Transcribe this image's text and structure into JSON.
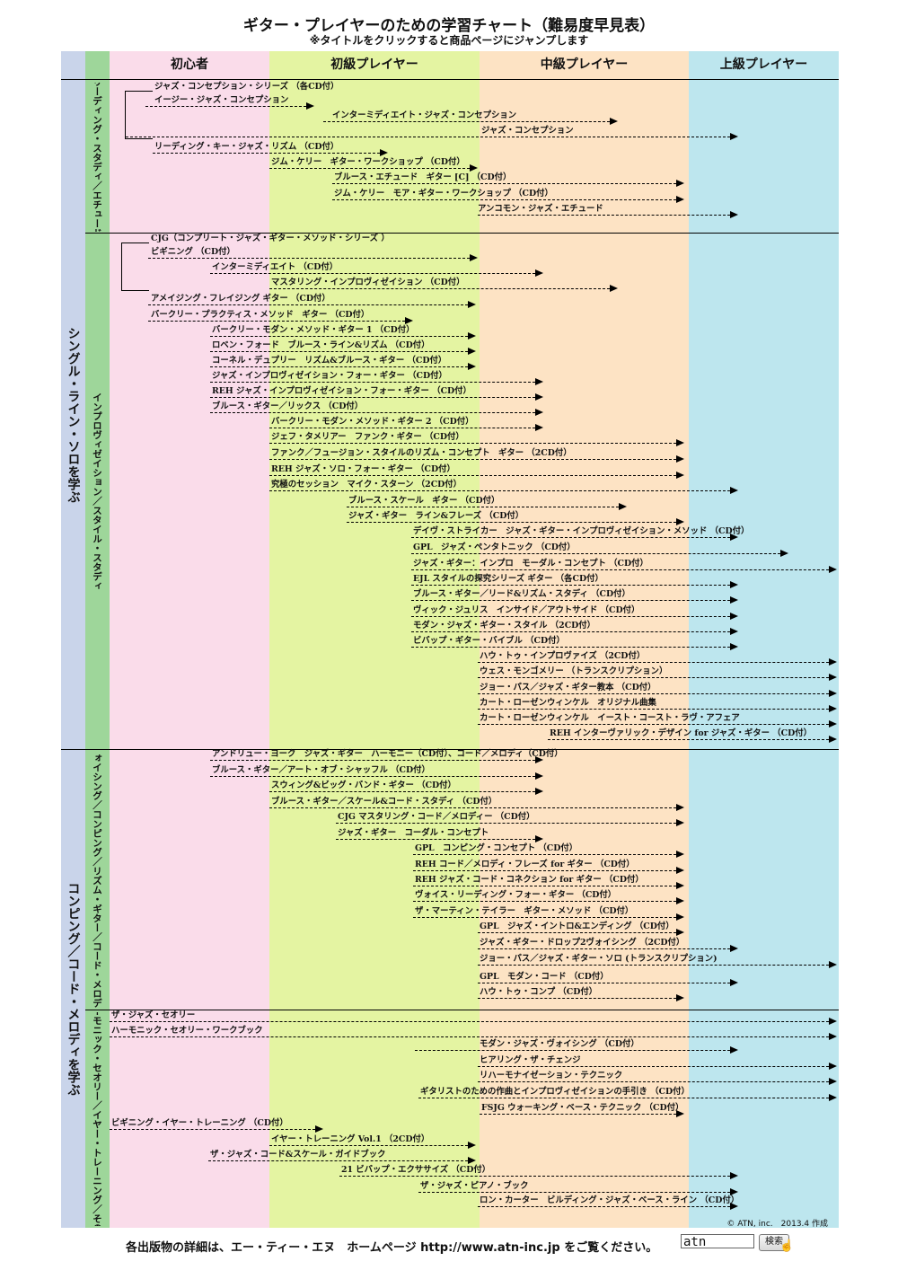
{
  "header": {
    "title": "ギター・プレイヤーのための学習チャート（難易度早見表）",
    "subtitle": "※タイトルをクリックすると商品ページにジャンプします"
  },
  "levels": [
    "初心者",
    "初級プレイヤー",
    "中級プレイヤー",
    "上級プレイヤー"
  ],
  "colors": {
    "major_col": "#c9d4ea",
    "minor_col": "#9ed69a",
    "beginner": "#fadcea",
    "elementary": "#e4f4a2",
    "intermediate": "#fde3c4",
    "advanced": "#bde6ee"
  },
  "major_sections": [
    "シングル・ライン・ソロを学ぶ",
    "コンピング／コード・メロディを学ぶ"
  ],
  "minor_sections": [
    "リーディング・スタディ／エチュード",
    "インプロヴィゼイション／スタイル・スタディ",
    "ヴォイシング／コンピング／リズム・ギター／コード・メロディ",
    "ハーモニック・セオリー／イヤー・トレーニング／その他"
  ],
  "items": [
    {
      "title": "ジャズ・コンセプション・シリーズ （各CD付）"
    },
    {
      "title": "イージー・ジャズ・コンセプション"
    },
    {
      "title": "インターミディエイト・ジャズ・コンセプション"
    },
    {
      "title": "ジャズ・コンセプション"
    },
    {
      "title": "リーディング・キー・ジャズ・リズム （CD付）"
    },
    {
      "title": "ジム・ケリー　ギター・ワークショップ （CD付）"
    },
    {
      "title": "ブルース・エチュード　ギター [C] （CD付）"
    },
    {
      "title": "ジム・ケリー　モア・ギター・ワークショップ （CD付）"
    },
    {
      "title": "アンコモン・ジャズ・エチュード"
    },
    {
      "title": "CJG（コンプリート・ジャズ・ギター・メソッド・シリーズ ）"
    },
    {
      "title": "ビギニング （CD付）"
    },
    {
      "title": "インターミディエイト （CD付）"
    },
    {
      "title": "マスタリング・インプロヴィゼイション （CD付）"
    },
    {
      "title": "アメイジング・フレイジング ギター （CD付）"
    },
    {
      "title": "バークリー・プラクティス・メソッド　ギター （CD付）"
    },
    {
      "title": "バークリー・モダン・メソッド・ギター 1 （CD付）"
    },
    {
      "title": "ロベン・フォード　ブルース・ライン&リズム （CD付）"
    },
    {
      "title": "コーネル・デュプリー　リズム&ブルース・ギター （CD付）"
    },
    {
      "title": "ジャズ・インプロヴィゼイション・フォー・ギター （CD付）"
    },
    {
      "title": "REH ジャズ・インプロヴィゼイション・フォー・ギター （CD付）"
    },
    {
      "title": "ブルース・ギター／リックス （CD付）"
    },
    {
      "title": "バークリー・モダン・メソッド・ギター 2 （CD付）"
    },
    {
      "title": "ジェフ・タメリアー　ファンク・ギター （CD付）"
    },
    {
      "title": "ファンク／フュージョン・スタイルのリズム・コンセプト　ギター （2CD付）"
    },
    {
      "title": "REH ジャズ・ソロ・フォー・ギター （CD付）"
    },
    {
      "title": "究極のセッション　マイク・スターン （2CD付）"
    },
    {
      "title": "ブルース・スケール　ギター （CD付）"
    },
    {
      "title": "ジャズ・ギター　ライン&フレーズ （CD付）"
    },
    {
      "title": "デイヴ・ストライカー　ジャズ・ギター・インプロヴィゼイション・メソッド （CD付）"
    },
    {
      "title": "GPL　ジャズ・ペンタトニック （CD付）"
    },
    {
      "title": "ジャズ・ギター：インプロ　モーダル・コンセプト （CD付）"
    },
    {
      "title": "EJL スタイルの探究シリーズ ギター （各CD付）"
    },
    {
      "title": "ブルース・ギター／リード&リズム・スタディ （CD付）"
    },
    {
      "title": "ヴィック・ジュリス　インサイド／アウトサイド （CD付）"
    },
    {
      "title": "モダン・ジャズ・ギター・スタイル （2CD付）"
    },
    {
      "title": "ビバップ・ギター・バイブル （CD付）"
    },
    {
      "title": "ハウ・トゥ・インプロヴァイズ （2CD付）"
    },
    {
      "title": "ウェス・モンゴメリー （トランスクリプション）"
    },
    {
      "title": "ジョー・パス／ジャズ・ギター教本 （CD付）"
    },
    {
      "title": "カート・ローゼンウィンケル　オリジナル曲集"
    },
    {
      "title": "カート・ローゼンウィンケル　イースト・コースト・ラヴ・アフェア"
    },
    {
      "title": "REH インターヴァリック・デザイン for ジャズ・ギター （CD付）"
    },
    {
      "title": "アンドリュー・ヨーク　ジャズ・ギター　ハーモニー（CD付）、コード／メロディ（CD付）"
    },
    {
      "title": "ブルース・ギター／アート・オブ・シャッフル （CD付）"
    },
    {
      "title": "スウィング&ビッグ・バンド・ギター （CD付）"
    },
    {
      "title": "ブルース・ギター／スケール&コード・スタディ （CD付）"
    },
    {
      "title": "CJG マスタリング・コード／メロディー （CD付）"
    },
    {
      "title": "ジャズ・ギター　コーダル・コンセプト"
    },
    {
      "title": "GPL　コンピング・コンセプト （CD付）"
    },
    {
      "title": "REH コード／メロディ・フレーズ for ギター （CD付）"
    },
    {
      "title": "REH ジャズ・コード・コネクション for ギター （CD付）"
    },
    {
      "title": "ヴォイス・リーディング・フォー・ギター （CD付）"
    },
    {
      "title": "ザ・マーティン・テイラー　ギター・メソッド （CD付）"
    },
    {
      "title": "GPL　ジャズ・イントロ&エンディング （CD付）"
    },
    {
      "title": "ジャズ・ギター・ドロップ2ヴォイシング （2CD付）"
    },
    {
      "title": "ジョー・パス／ジャズ・ギター・ソロ (トランスクリプション)"
    },
    {
      "title": "GPL　モダン・コード （CD付）"
    },
    {
      "title": "ハウ・トゥ・コンプ （CD付）"
    },
    {
      "title": "ザ・ジャズ・セオリー"
    },
    {
      "title": "ハーモニック・セオリー・ワークブック"
    },
    {
      "title": "モダン・ジャズ・ヴォイシング （CD付）"
    },
    {
      "title": "ヒアリング・ザ・チェンジ"
    },
    {
      "title": "リハーモナイゼーション・テクニック"
    },
    {
      "title": "ギタリストのための作曲とインプロヴィゼイションの手引き （CD付）"
    },
    {
      "title": "FSJG ウォーキング・ベース・テクニック （CD付）"
    },
    {
      "title": "ビギニング・イヤー・トレーニング （CD付）"
    },
    {
      "title": "イヤー・トレーニング Vol.1 （2CD付）"
    },
    {
      "title": "ザ・ジャズ・コード&スケール・ガイドブック"
    },
    {
      "title": "21 ビバップ・エクササイズ （CD付）"
    },
    {
      "title": "ザ・ジャズ・ピアノ・ブック"
    },
    {
      "title": "ロン・カーター　ビルディング・ジャズ・ベース・ライン （CD付）"
    }
  ],
  "credit": "© ATN, inc.　2013.4 作成",
  "footer": {
    "text": "各出版物の詳細は、エー・ティー・エヌ　ホームページ http://www.atn-inc.jp をご覧ください。",
    "search_value": "atn",
    "search_button": "検索"
  }
}
